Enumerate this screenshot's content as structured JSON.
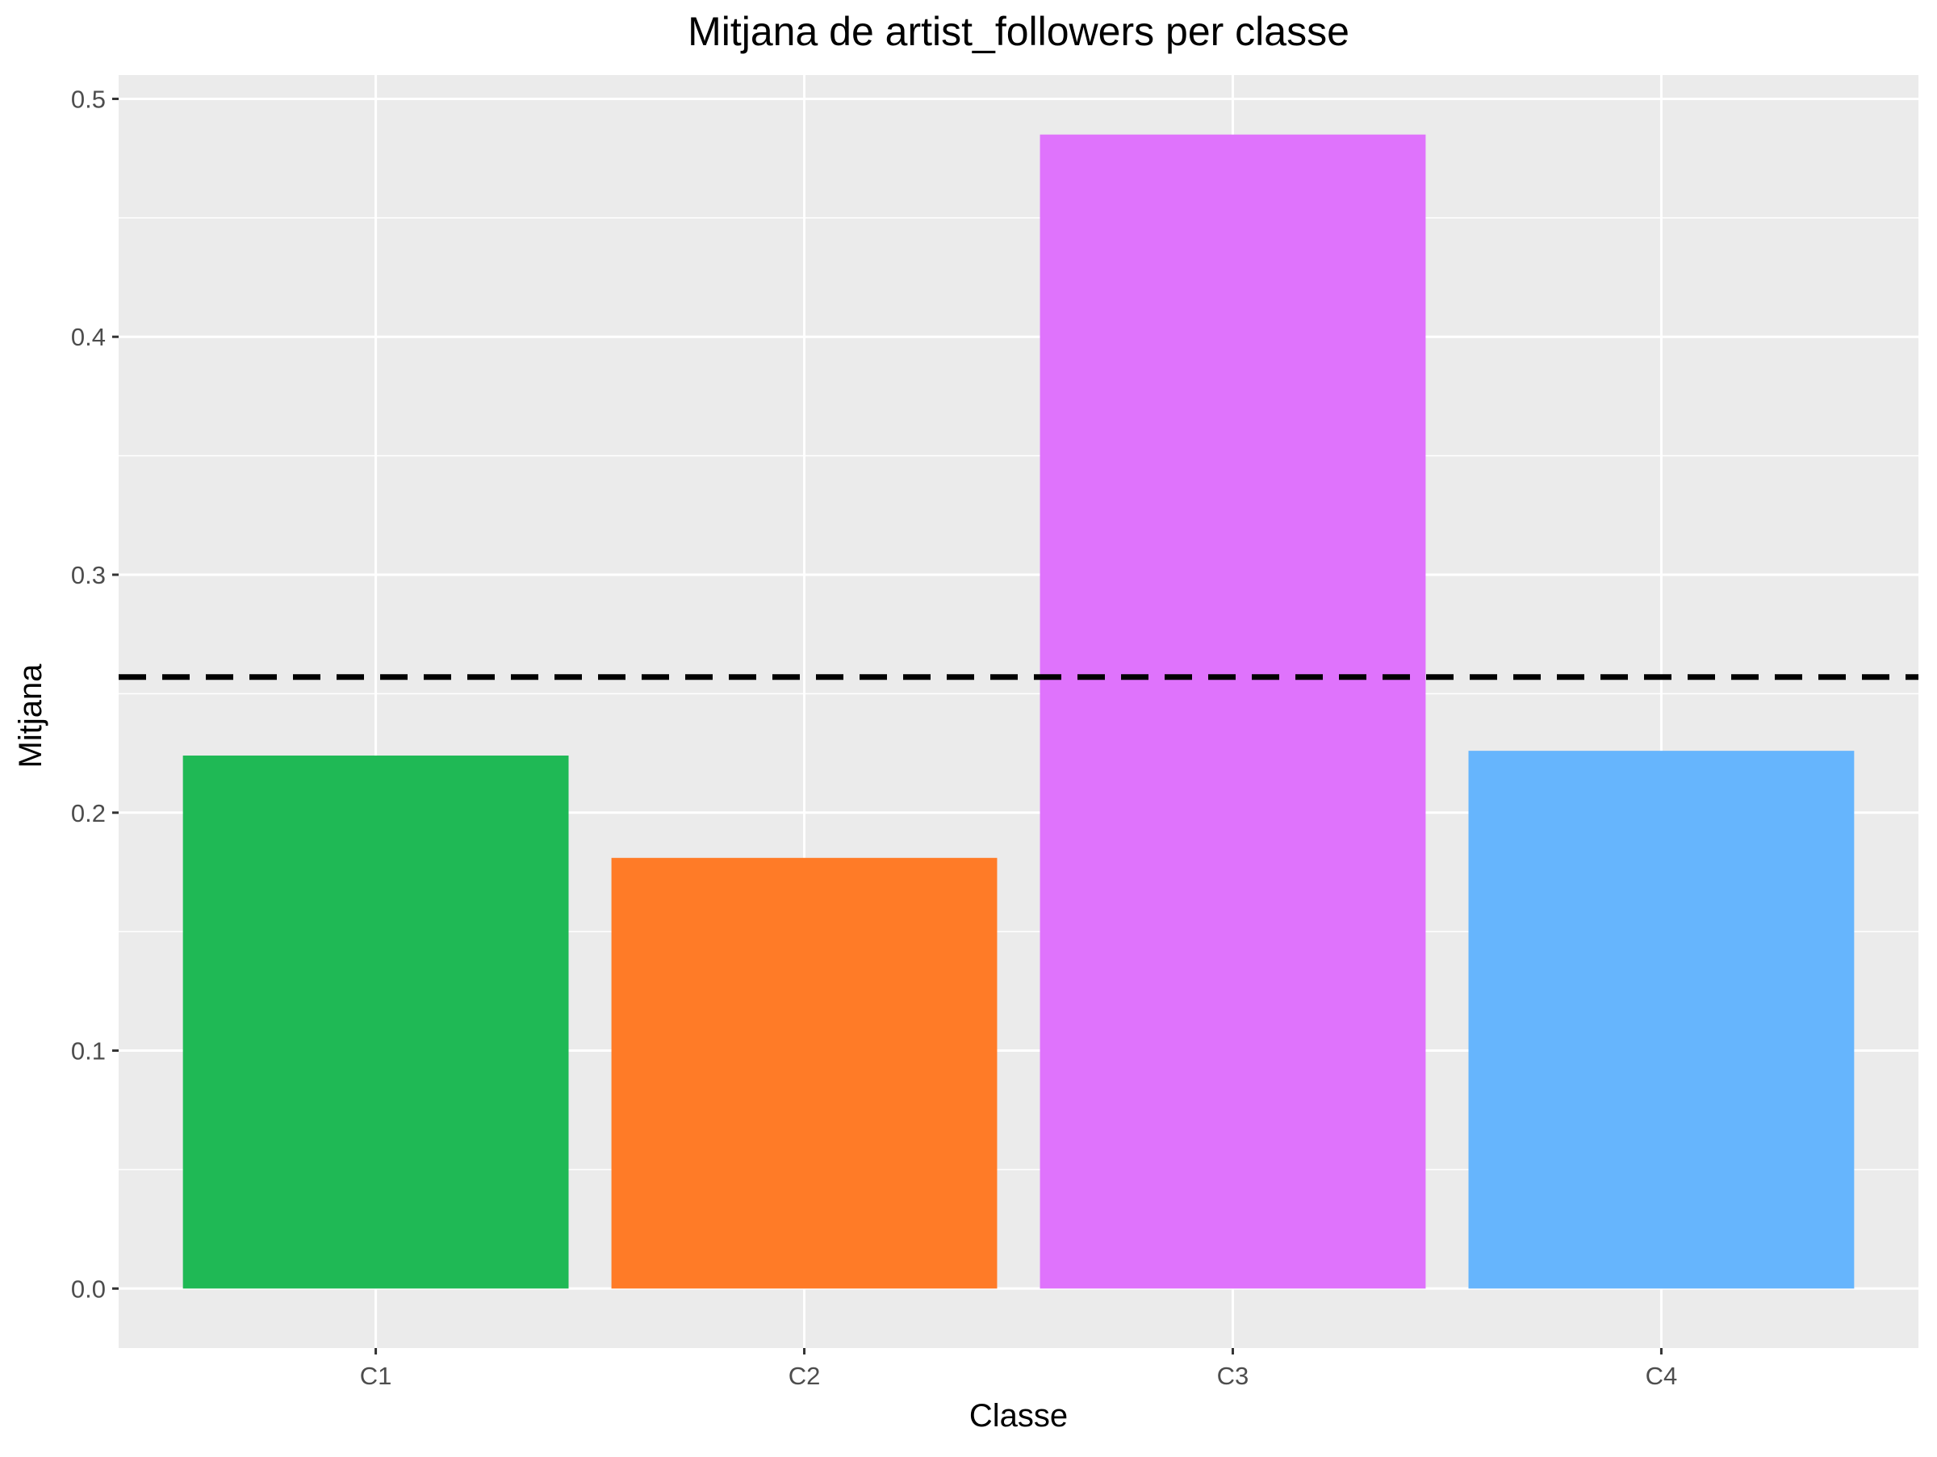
{
  "chart_data": {
    "type": "bar",
    "title": "Mitjana de artist_followers per classe",
    "xlabel": "Classe",
    "ylabel": "Mitjana",
    "categories": [
      "C1",
      "C2",
      "C3",
      "C4"
    ],
    "values": [
      0.224,
      0.181,
      0.485,
      0.226
    ],
    "colors": [
      "#1FB955",
      "#FF7B27",
      "#DF73FC",
      "#66B5FD"
    ],
    "reference_line": {
      "value": 0.257,
      "style": "dashed",
      "color": "#000000"
    },
    "ylim": [
      -0.025,
      0.51
    ],
    "yticks": [
      0.0,
      0.1,
      0.2,
      0.3,
      0.4,
      0.5
    ],
    "ytick_labels": [
      "0.0",
      "0.1",
      "0.2",
      "0.3",
      "0.4",
      "0.5"
    ],
    "grid": true,
    "legend": "none",
    "panel_color": "#EBEBEB",
    "grid_color": "#FFFFFF"
  }
}
